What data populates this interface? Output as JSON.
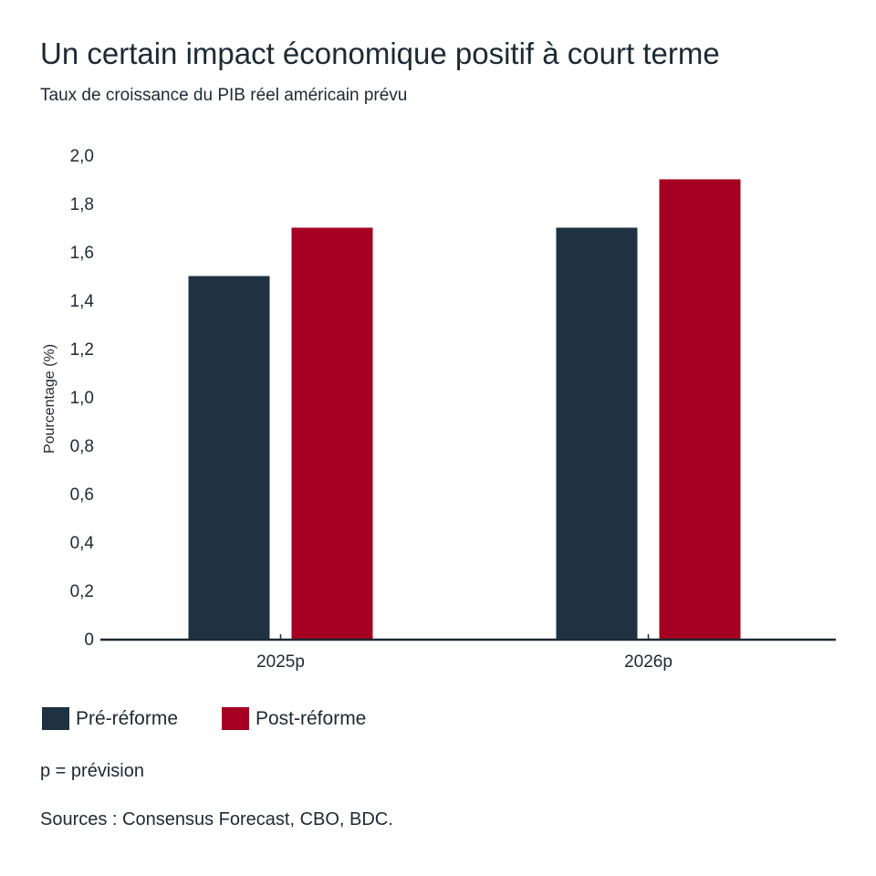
{
  "chart_data": {
    "type": "bar",
    "title": "Un certain impact économique positif à court terme",
    "subtitle": "Taux de croissance du PIB réel américain prévu",
    "xlabel": "",
    "ylabel": "Pourcentage (%)",
    "ylim": [
      0,
      2.0
    ],
    "yticks": [
      0,
      0.2,
      0.4,
      0.6,
      0.8,
      1.0,
      1.2,
      1.4,
      1.6,
      1.8,
      2.0
    ],
    "ytick_labels": [
      "0",
      "0,2",
      "0,4",
      "0,6",
      "0,8",
      "1,0",
      "1,2",
      "1,4",
      "1,6",
      "1,8",
      "2,0"
    ],
    "categories": [
      "2025p",
      "2026p"
    ],
    "series": [
      {
        "name": "Pré-réforme",
        "color": "#1e3241",
        "values": [
          1.5,
          1.7
        ]
      },
      {
        "name": "Post-réforme",
        "color": "#a50021",
        "values": [
          1.7,
          1.9
        ]
      }
    ],
    "grid": false,
    "legend_position": "bottom-left"
  },
  "notes": {
    "forecast": "p = prévision",
    "sources": "Sources : Consensus Forecast, CBO, BDC."
  }
}
